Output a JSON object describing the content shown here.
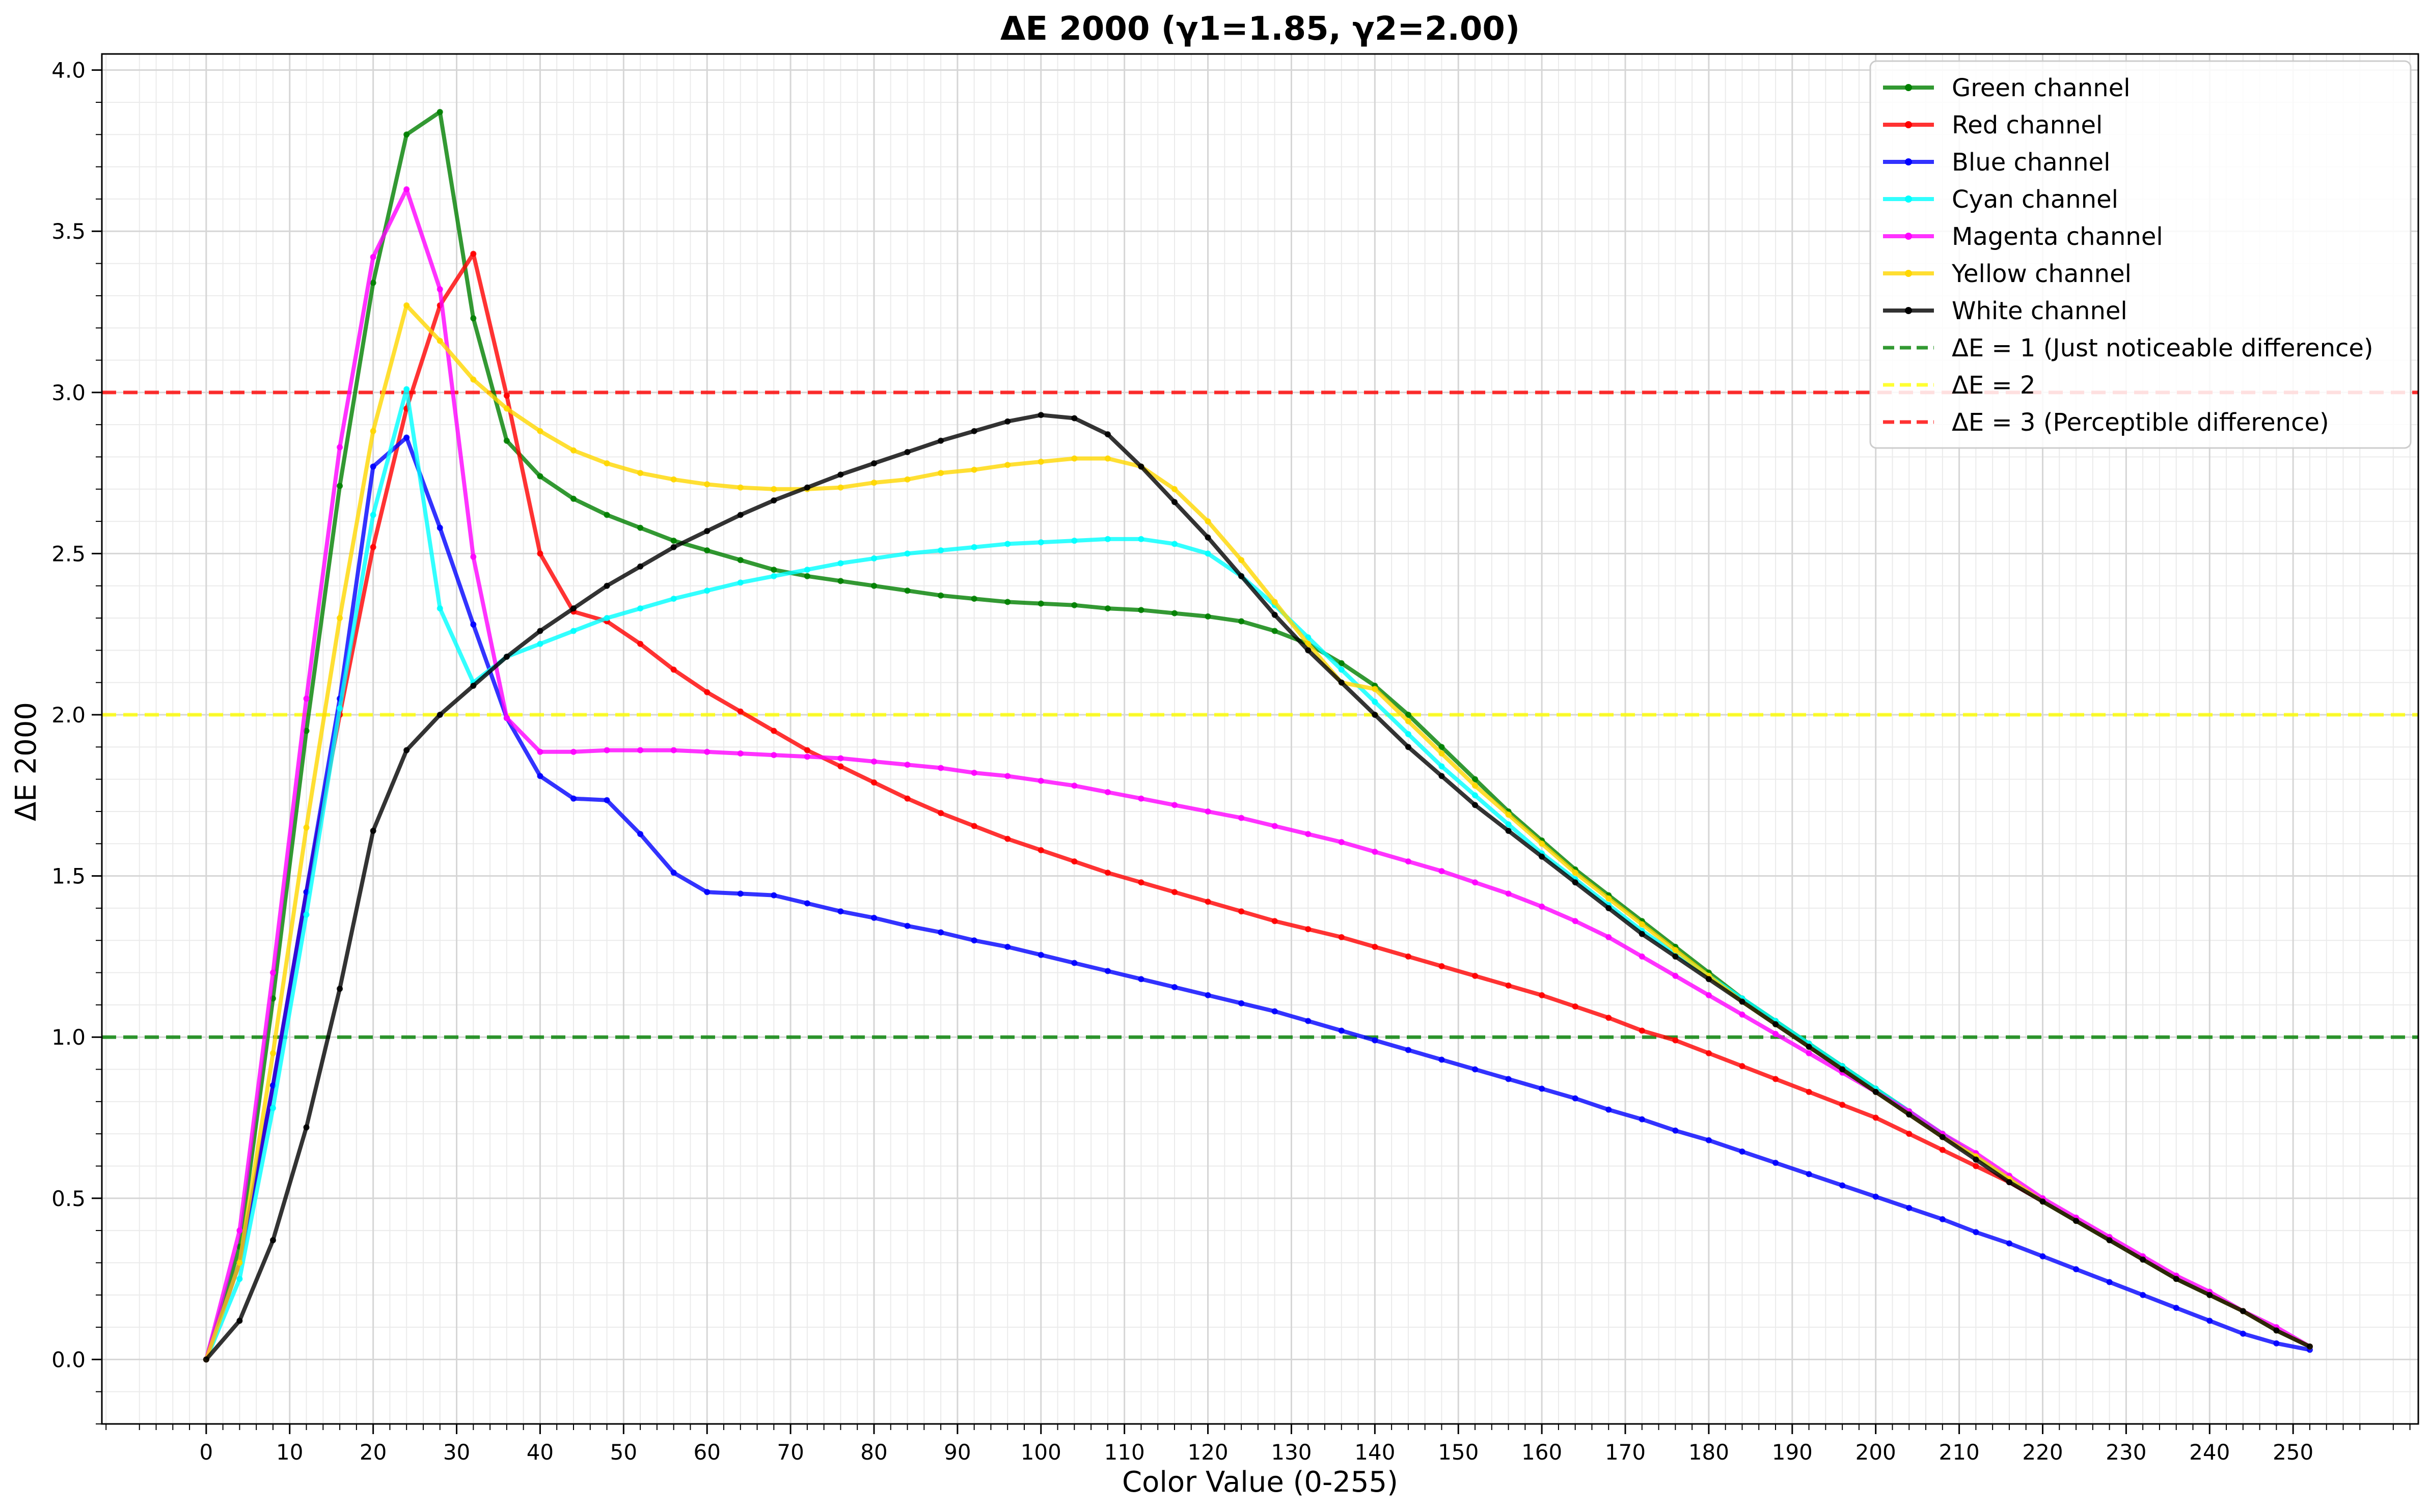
{
  "chart_data": {
    "type": "line",
    "title": "ΔE 2000 (γ1=1.85, γ2=2.00)",
    "xlabel": "Color Value (0-255)",
    "ylabel": "ΔE 2000",
    "xlim": [
      -12.5,
      265
    ],
    "ylim": [
      -0.2,
      4.05
    ],
    "grid": true,
    "legend_position": "top-right",
    "x_ticks": [
      0,
      10,
      20,
      30,
      40,
      50,
      60,
      70,
      80,
      90,
      100,
      110,
      120,
      130,
      140,
      150,
      160,
      170,
      180,
      190,
      200,
      210,
      220,
      230,
      240,
      250
    ],
    "y_ticks": [
      0.0,
      0.5,
      1.0,
      1.5,
      2.0,
      2.5,
      3.0,
      3.5,
      4.0
    ],
    "y_tick_labels": [
      "0.0",
      "0.5",
      "1.0",
      "1.5",
      "2.0",
      "2.5",
      "3.0",
      "3.5",
      "4.0"
    ],
    "x": [
      0,
      4,
      8,
      12,
      16,
      20,
      24,
      28,
      32,
      36,
      40,
      44,
      48,
      52,
      56,
      60,
      64,
      68,
      72,
      76,
      80,
      84,
      88,
      92,
      96,
      100,
      104,
      108,
      112,
      116,
      120,
      124,
      128,
      132,
      136,
      140,
      144,
      148,
      152,
      156,
      160,
      164,
      168,
      172,
      176,
      180,
      184,
      188,
      192,
      196,
      200,
      204,
      208,
      212,
      216,
      220,
      224,
      228,
      232,
      236,
      240,
      244,
      248,
      252
    ],
    "series": [
      {
        "name": "Green channel",
        "color": "#008000",
        "values": [
          0,
          0.35,
          1.12,
          1.95,
          2.71,
          3.34,
          3.8,
          3.87,
          3.23,
          2.85,
          2.74,
          2.67,
          2.62,
          2.58,
          2.54,
          2.51,
          2.48,
          2.45,
          2.43,
          2.415,
          2.4,
          2.385,
          2.37,
          2.36,
          2.35,
          2.345,
          2.34,
          2.33,
          2.325,
          2.315,
          2.305,
          2.29,
          2.26,
          2.22,
          2.16,
          2.09,
          2.0,
          1.9,
          1.8,
          1.7,
          1.61,
          1.52,
          1.44,
          1.36,
          1.28,
          1.2,
          1.12,
          1.05,
          0.98,
          0.91,
          0.84,
          0.77,
          0.7,
          0.63,
          0.56,
          0.49,
          0.43,
          0.37,
          0.31,
          0.25,
          0.2,
          0.15,
          0.09,
          0.04
        ]
      },
      {
        "name": "Red channel",
        "color": "#ff0000",
        "values": [
          0,
          0.3,
          0.85,
          1.45,
          2.0,
          2.52,
          2.95,
          3.27,
          3.43,
          2.99,
          2.5,
          2.32,
          2.29,
          2.22,
          2.14,
          2.07,
          2.01,
          1.95,
          1.89,
          1.84,
          1.79,
          1.74,
          1.695,
          1.655,
          1.615,
          1.58,
          1.545,
          1.51,
          1.48,
          1.45,
          1.42,
          1.39,
          1.36,
          1.335,
          1.31,
          1.28,
          1.25,
          1.22,
          1.19,
          1.16,
          1.13,
          1.095,
          1.06,
          1.02,
          0.99,
          0.95,
          0.91,
          0.87,
          0.83,
          0.79,
          0.75,
          0.7,
          0.65,
          0.6,
          0.55,
          0.49,
          0.43,
          0.37,
          0.31,
          0.25,
          0.2,
          0.15,
          0.09,
          0.04
        ]
      },
      {
        "name": "Blue channel",
        "color": "#0000ff",
        "values": [
          0,
          0.3,
          0.85,
          1.45,
          2.05,
          2.77,
          2.86,
          2.58,
          2.28,
          1.99,
          1.81,
          1.74,
          1.735,
          1.63,
          1.51,
          1.45,
          1.445,
          1.44,
          1.415,
          1.39,
          1.37,
          1.345,
          1.325,
          1.3,
          1.28,
          1.255,
          1.23,
          1.205,
          1.18,
          1.155,
          1.13,
          1.105,
          1.08,
          1.05,
          1.02,
          0.99,
          0.96,
          0.93,
          0.9,
          0.87,
          0.84,
          0.81,
          0.775,
          0.745,
          0.71,
          0.68,
          0.645,
          0.61,
          0.575,
          0.54,
          0.505,
          0.47,
          0.435,
          0.395,
          0.36,
          0.32,
          0.28,
          0.24,
          0.2,
          0.16,
          0.12,
          0.08,
          0.05,
          0.03
        ]
      },
      {
        "name": "Cyan channel",
        "color": "#00ffff",
        "values": [
          0,
          0.25,
          0.78,
          1.38,
          2.02,
          2.62,
          3.01,
          2.33,
          2.1,
          2.18,
          2.22,
          2.26,
          2.3,
          2.33,
          2.36,
          2.385,
          2.41,
          2.43,
          2.45,
          2.47,
          2.485,
          2.5,
          2.51,
          2.52,
          2.53,
          2.535,
          2.54,
          2.545,
          2.545,
          2.53,
          2.5,
          2.43,
          2.34,
          2.24,
          2.14,
          2.04,
          1.94,
          1.84,
          1.75,
          1.66,
          1.57,
          1.49,
          1.41,
          1.33,
          1.26,
          1.19,
          1.12,
          1.05,
          0.98,
          0.91,
          0.84,
          0.77,
          0.7,
          0.63,
          0.56,
          0.49,
          0.43,
          0.37,
          0.31,
          0.25,
          0.2,
          0.15,
          0.09,
          0.04
        ]
      },
      {
        "name": "Magenta channel",
        "color": "#ff00ff",
        "values": [
          0,
          0.4,
          1.2,
          2.05,
          2.83,
          3.42,
          3.63,
          3.32,
          2.49,
          1.99,
          1.885,
          1.885,
          1.89,
          1.89,
          1.89,
          1.885,
          1.88,
          1.875,
          1.87,
          1.865,
          1.855,
          1.845,
          1.835,
          1.82,
          1.81,
          1.795,
          1.78,
          1.76,
          1.74,
          1.72,
          1.7,
          1.68,
          1.655,
          1.63,
          1.605,
          1.575,
          1.545,
          1.515,
          1.48,
          1.445,
          1.405,
          1.36,
          1.31,
          1.25,
          1.19,
          1.13,
          1.07,
          1.01,
          0.95,
          0.89,
          0.83,
          0.77,
          0.7,
          0.64,
          0.57,
          0.5,
          0.44,
          0.38,
          0.32,
          0.26,
          0.21,
          0.15,
          0.1,
          0.04
        ]
      },
      {
        "name": "Yellow channel",
        "color": "#ffd700",
        "values": [
          0,
          0.3,
          0.95,
          1.65,
          2.3,
          2.88,
          3.27,
          3.16,
          3.04,
          2.95,
          2.88,
          2.82,
          2.78,
          2.75,
          2.73,
          2.715,
          2.705,
          2.7,
          2.7,
          2.705,
          2.72,
          2.73,
          2.75,
          2.76,
          2.775,
          2.785,
          2.795,
          2.795,
          2.77,
          2.7,
          2.6,
          2.48,
          2.35,
          2.22,
          2.1,
          2.08,
          1.98,
          1.88,
          1.78,
          1.69,
          1.6,
          1.51,
          1.43,
          1.35,
          1.27,
          1.19,
          1.11,
          1.04,
          0.97,
          0.9,
          0.83,
          0.76,
          0.69,
          0.63,
          0.56,
          0.49,
          0.43,
          0.37,
          0.31,
          0.25,
          0.2,
          0.15,
          0.09,
          0.04
        ]
      },
      {
        "name": "White channel",
        "color": "#000000",
        "values": [
          0,
          0.12,
          0.37,
          0.72,
          1.15,
          1.64,
          1.89,
          2.0,
          2.09,
          2.18,
          2.26,
          2.33,
          2.4,
          2.46,
          2.52,
          2.57,
          2.62,
          2.665,
          2.705,
          2.745,
          2.78,
          2.815,
          2.85,
          2.88,
          2.91,
          2.93,
          2.92,
          2.87,
          2.77,
          2.66,
          2.55,
          2.43,
          2.31,
          2.2,
          2.1,
          2.0,
          1.9,
          1.81,
          1.72,
          1.64,
          1.56,
          1.48,
          1.4,
          1.32,
          1.25,
          1.18,
          1.11,
          1.04,
          0.97,
          0.9,
          0.83,
          0.76,
          0.69,
          0.62,
          0.55,
          0.49,
          0.43,
          0.37,
          0.31,
          0.25,
          0.2,
          0.15,
          0.09,
          0.04
        ]
      }
    ],
    "reference_lines": [
      {
        "name": "ΔE = 1 (Just noticeable difference)",
        "value": 1,
        "color": "#008000"
      },
      {
        "name": "ΔE = 2",
        "value": 2,
        "color": "#ffff00"
      },
      {
        "name": "ΔE = 3 (Perceptible difference)",
        "value": 3,
        "color": "#ff0000"
      }
    ]
  }
}
